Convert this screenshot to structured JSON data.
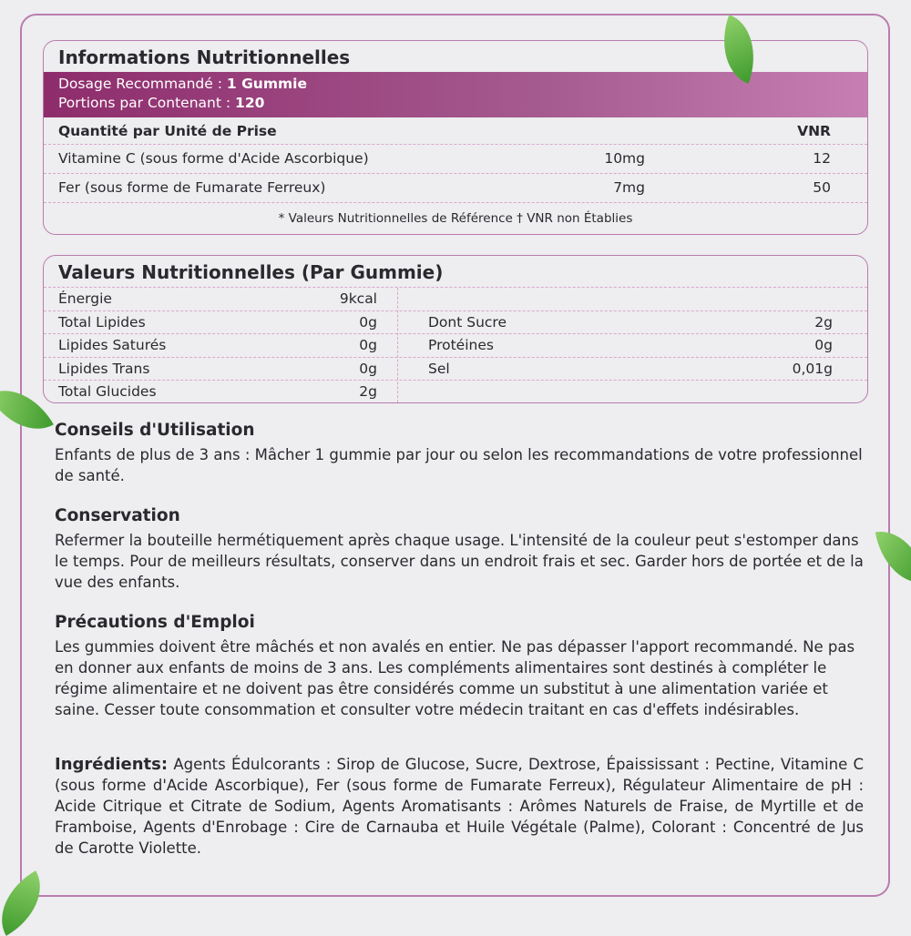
{
  "nutrition_info": {
    "title": "Informations Nutritionnelles",
    "dosage_label": "Dosage Recommandé : ",
    "dosage_value": "1 Gummie",
    "portions_label": "Portions par Contenant : ",
    "portions_value": "120",
    "header_qty": "Quantité par Unité de Prise",
    "header_vnr": "VNR",
    "rows": [
      {
        "name": "Vitamine C (sous forme d'Acide Ascorbique)",
        "amount": "10mg",
        "vnr": "12"
      },
      {
        "name": "Fer (sous forme de Fumarate Ferreux)",
        "amount": "7mg",
        "vnr": "50"
      }
    ],
    "footnote": "* Valeurs Nutritionnelles de Référence † VNR non Établies"
  },
  "values": {
    "title": "Valeurs Nutritionnelles (Par Gummie)",
    "left": [
      {
        "label": "Énergie",
        "value": "9kcal"
      },
      {
        "label": "Total Lipides",
        "value": "0g"
      },
      {
        "label": "Lipides Saturés",
        "value": "0g"
      },
      {
        "label": "Lipides Trans",
        "value": "0g"
      },
      {
        "label": "Total Glucides",
        "value": "2g"
      }
    ],
    "right": [
      {
        "label": "",
        "value": ""
      },
      {
        "label": "Dont Sucre",
        "value": "2g"
      },
      {
        "label": "Protéines",
        "value": "0g"
      },
      {
        "label": "Sel",
        "value": "0,01g"
      },
      {
        "label": "",
        "value": ""
      }
    ]
  },
  "usage": {
    "title": "Conseils d'Utilisation",
    "text": "Enfants de plus de 3 ans : Mâcher 1 gummie par jour ou selon les recommandations de votre professionnel de santé."
  },
  "storage": {
    "title": "Conservation",
    "text": "Refermer la bouteille hermétiquement après chaque usage. L'intensité de la couleur peut s'estomper dans le temps. Pour de meilleurs résultats, conserver dans un endroit frais et sec. Garder hors de portée et de la vue des enfants."
  },
  "precautions": {
    "title": "Précautions d'Emploi",
    "text": "Les gummies doivent être mâchés et non avalés en entier. Ne pas dépasser l'apport recommandé. Ne pas en donner aux enfants de moins de 3 ans. Les compléments alimentaires sont destinés à compléter le régime alimentaire et ne doivent pas être considérés comme un substitut à une alimentation variée et saine. Cesser toute consommation et consulter votre médecin traitant en cas d'effets indésirables."
  },
  "ingredients": {
    "title": "Ingrédients:",
    "text": " Agents Édulcorants : Sirop de Glucose, Sucre, Dextrose, Épaississant : Pectine, Vitamine C (sous forme d'Acide Ascorbique), Fer (sous forme de Fumarate Ferreux), Régulateur Alimentaire de pH : Acide Citrique et Citrate de Sodium, Agents Aromatisants : Arômes Naturels de Fraise, de Myrtille et de Framboise, Agents d'Enrobage : Cire de Carnauba et Huile Végétale (Palme), Colorant : Concentré de Jus de Carotte Violette."
  },
  "colors": {
    "accent": "#8e2c6c",
    "border": "#b97dad",
    "leaf": "#5cb83e"
  }
}
